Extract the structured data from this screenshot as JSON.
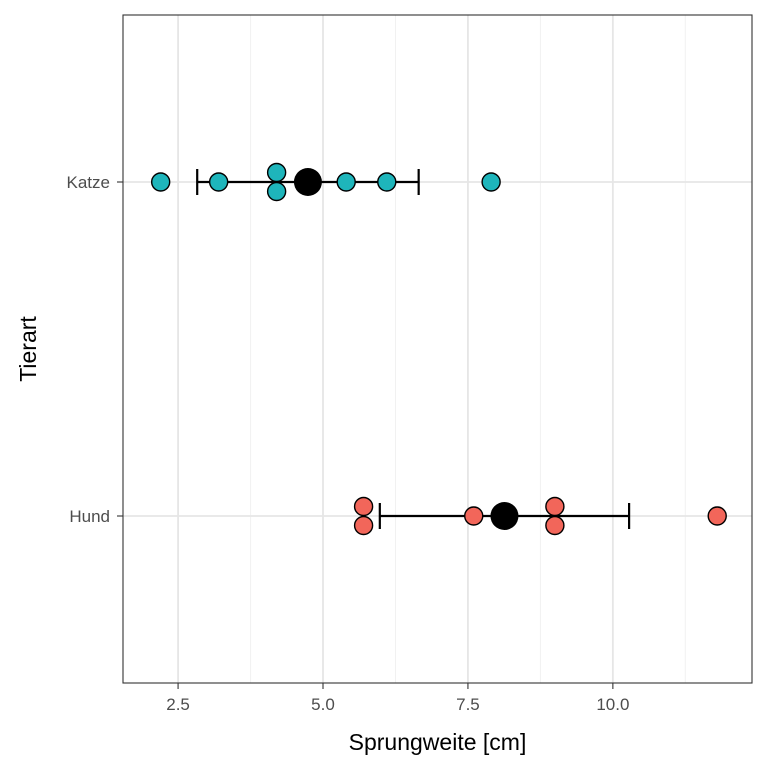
{
  "chart_data": {
    "type": "scatter",
    "xlabel": "Sprungweite [cm]",
    "ylabel": "Tierart",
    "xlim": [
      1.55,
      12.4
    ],
    "x_ticks": [
      2.5,
      5.0,
      7.5,
      10.0
    ],
    "x_tick_labels": [
      "2.5",
      "5.0",
      "7.5",
      "10.0"
    ],
    "categories": [
      "Hund",
      "Katze"
    ],
    "grid": true,
    "series": [
      {
        "category": "Katze",
        "color": "#1EB5BB",
        "points": [
          2.2,
          3.2,
          4.2,
          4.2,
          5.4,
          6.1,
          7.9
        ],
        "mean": 4.74,
        "error_low": 2.83,
        "error_high": 6.65
      },
      {
        "category": "Hund",
        "color": "#F2665A",
        "points": [
          5.7,
          5.7,
          7.6,
          9.0,
          9.0,
          11.8
        ],
        "mean": 8.13,
        "error_low": 5.98,
        "error_high": 10.28
      }
    ]
  }
}
